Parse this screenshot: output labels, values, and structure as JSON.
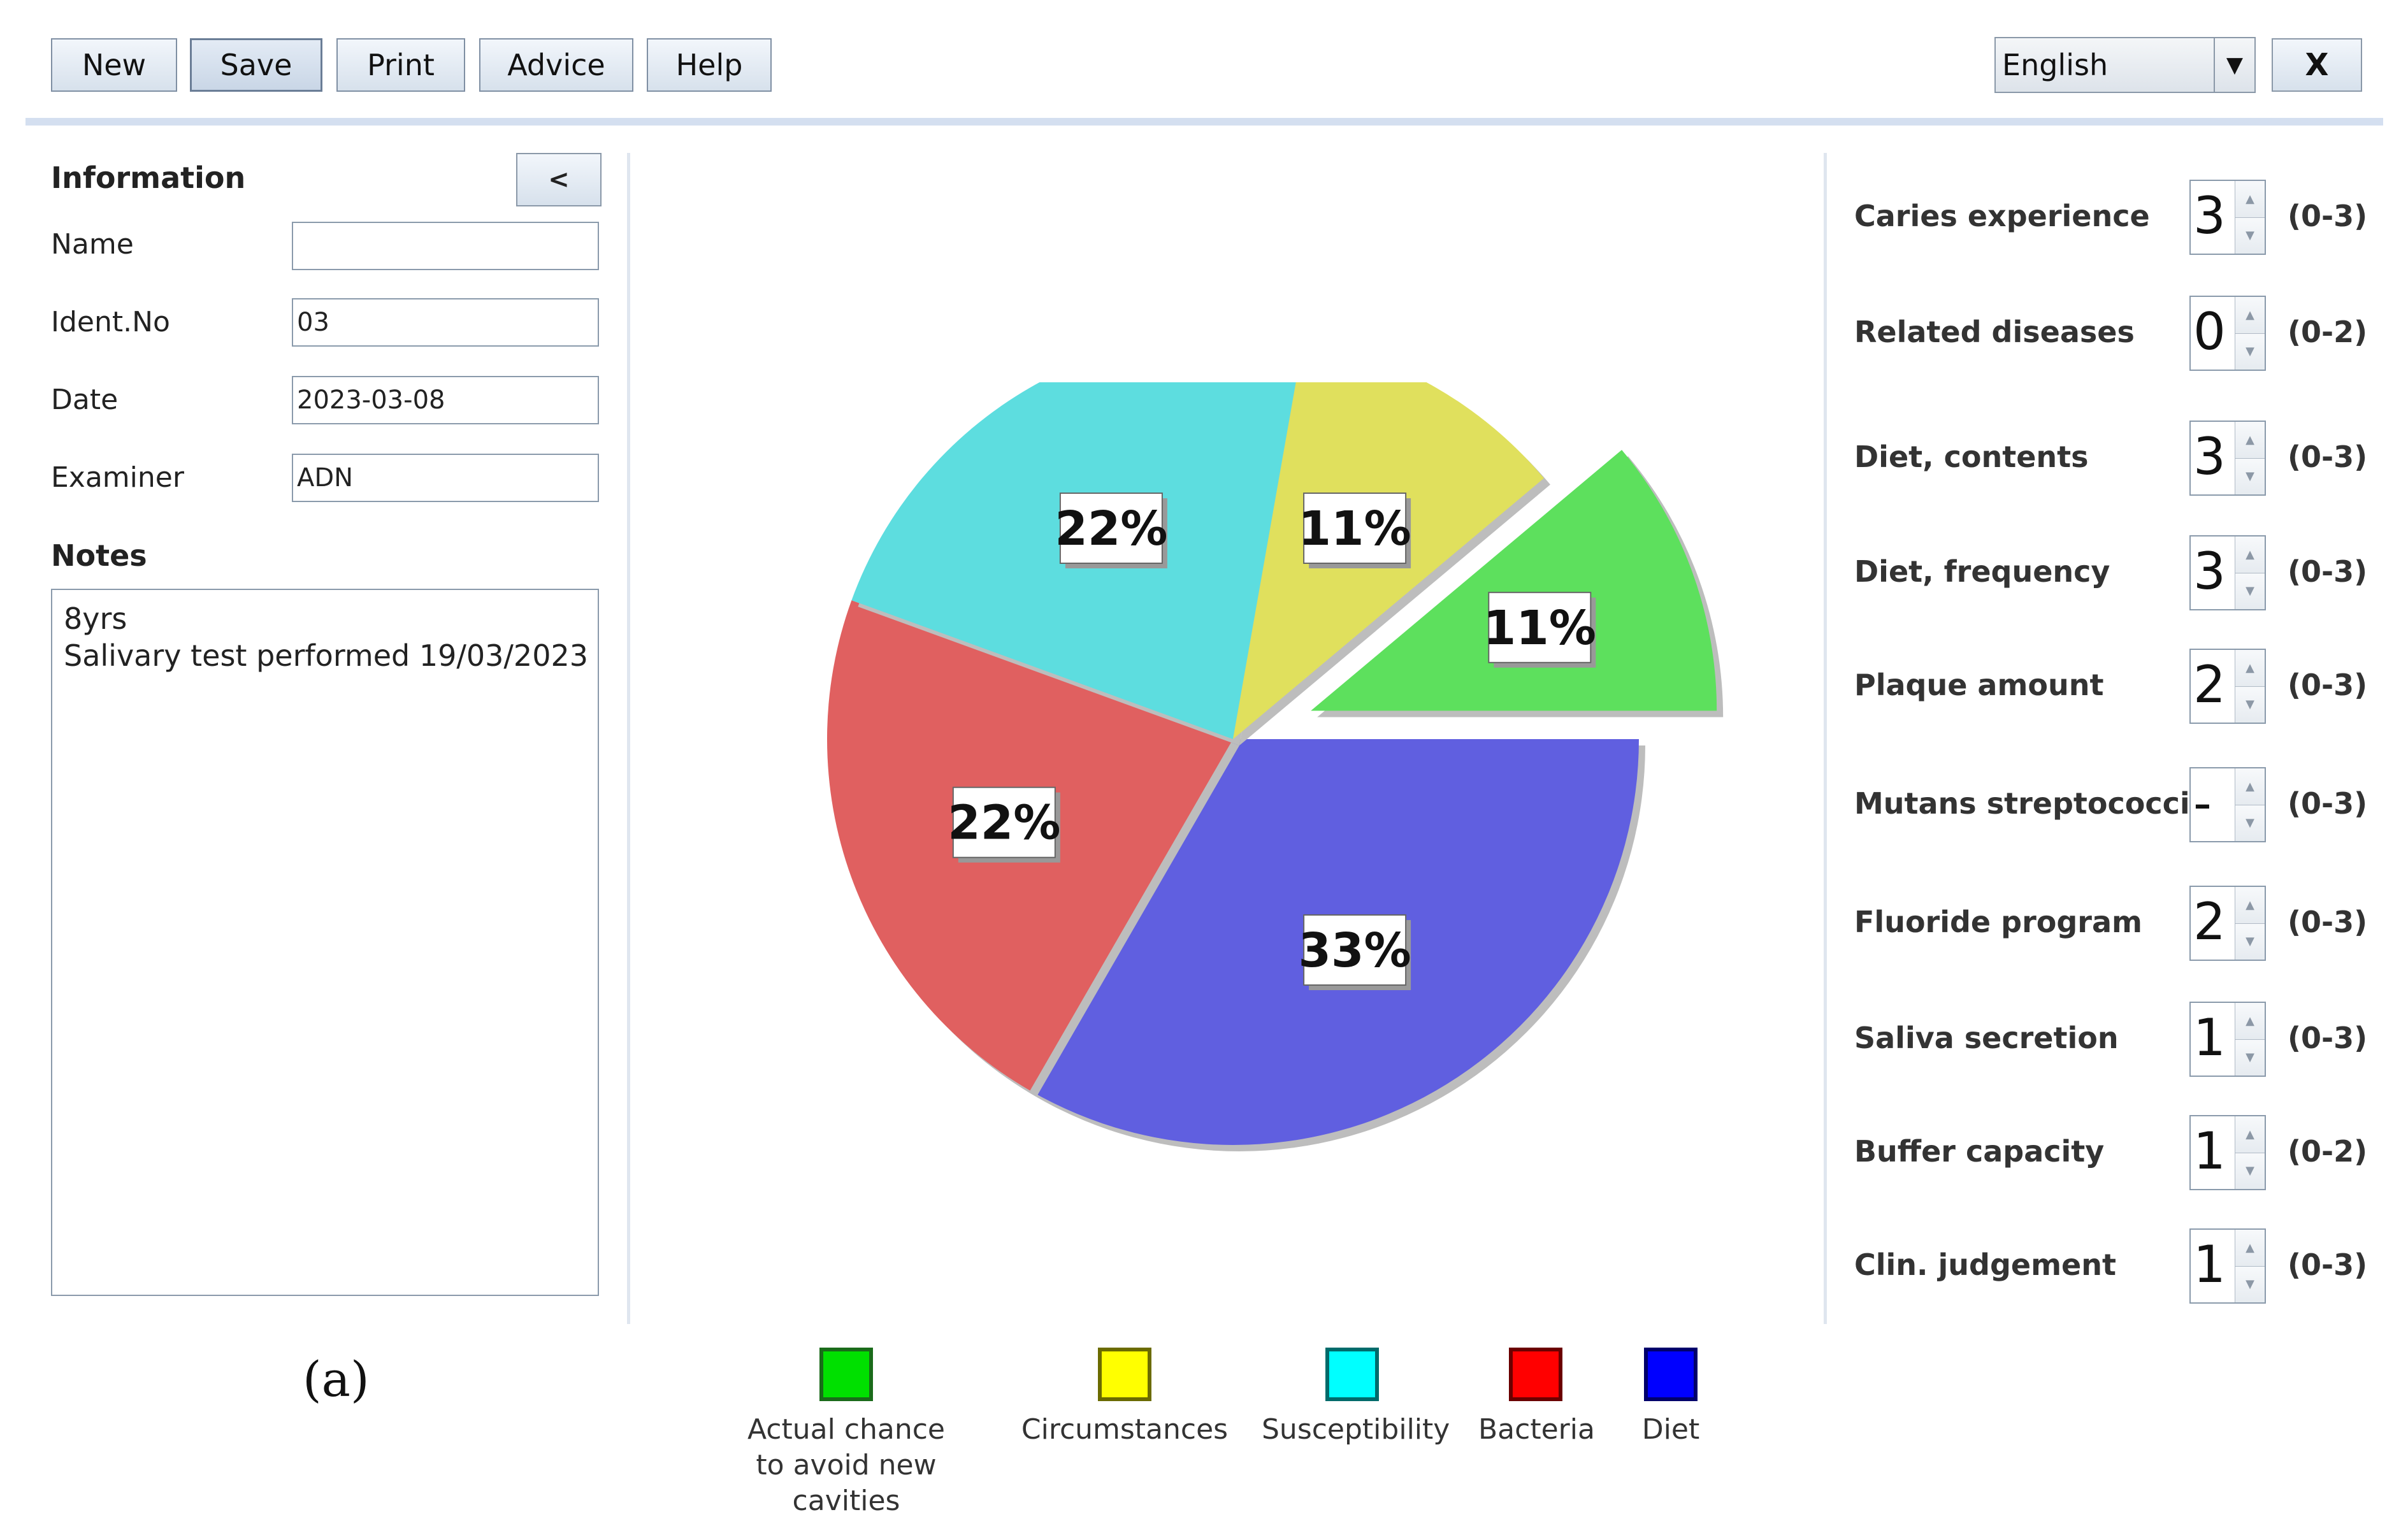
{
  "toolbar": {
    "buttons": [
      "New",
      "Save",
      "Print",
      "Advice",
      "Help"
    ],
    "language": "English",
    "close_label": "X"
  },
  "information": {
    "title": "Information",
    "collapse_label": "<",
    "fields": [
      {
        "label": "Name",
        "value": ""
      },
      {
        "label": "Ident.No",
        "value": "03"
      },
      {
        "label": "Date",
        "value": "2023-03-08"
      },
      {
        "label": "Examiner",
        "value": "ADN"
      }
    ]
  },
  "notes": {
    "title": "Notes",
    "lines": [
      "8yrs",
      "Salivary test performed 19/03/2023"
    ]
  },
  "risk_factors": [
    {
      "label": "Caries experience",
      "value": "3",
      "range": "(0-3)"
    },
    {
      "label": "Related diseases",
      "value": "0",
      "range": "(0-2)"
    },
    {
      "label": "Diet, contents",
      "value": "3",
      "range": "(0-3)"
    },
    {
      "label": "Diet, frequency",
      "value": "3",
      "range": "(0-3)"
    },
    {
      "label": "Plaque amount",
      "value": "2",
      "range": "(0-3)"
    },
    {
      "label": "Mutans streptococci",
      "value": "-",
      "range": "(0-3)"
    },
    {
      "label": "Fluoride program",
      "value": "2",
      "range": "(0-3)"
    },
    {
      "label": "Saliva secretion",
      "value": "1",
      "range": "(0-3)"
    },
    {
      "label": "Buffer capacity",
      "value": "1",
      "range": "(0-2)"
    },
    {
      "label": "Clin. judgement",
      "value": "1",
      "range": "(0-3)"
    }
  ],
  "chart_data": {
    "type": "pie",
    "slices": [
      {
        "label": "Actual chance to avoid new cavities",
        "value": 11,
        "display": "11%",
        "color": "#5de05d",
        "exploded": true
      },
      {
        "label": "Diet",
        "value": 33,
        "display": "33%",
        "color": "#605fe0"
      },
      {
        "label": "Bacteria",
        "value": 22,
        "display": "22%",
        "color": "#e06060"
      },
      {
        "label": "Susceptibility",
        "value": 22,
        "display": "22%",
        "color": "#5ddddf"
      },
      {
        "label": "Circumstances",
        "value": 11,
        "display": "11%",
        "color": "#e0e05d"
      }
    ]
  },
  "legend": [
    {
      "line1": "Actual chance",
      "line2": "to avoid new cavities"
    },
    {
      "line1": "Circumstances"
    },
    {
      "line1": "Susceptibility"
    },
    {
      "line1": "Bacteria"
    },
    {
      "line1": "Diet"
    }
  ],
  "caption": "(a)"
}
